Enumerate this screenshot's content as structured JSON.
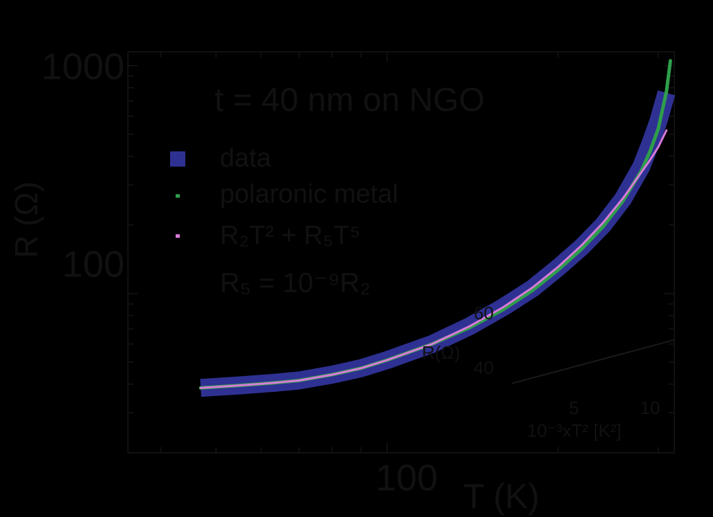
{
  "chart_data": {
    "type": "line",
    "xlabel": "T (K)",
    "ylabel": "R (Ω)",
    "xscale": "log",
    "yscale": "log",
    "xlim": [
      35,
      320
    ],
    "ylim": [
      20,
      1150
    ],
    "x_tick_labels": [
      {
        "value": 100,
        "label": "100"
      }
    ],
    "y_tick_labels": [
      {
        "value": 100,
        "label": "100"
      },
      {
        "value": 1000,
        "label": "1000"
      }
    ],
    "annotations": {
      "thickness": "t = 40 nm on NGO",
      "relation": "R₅ = 10⁻⁹R₂"
    },
    "legend": {
      "placement": "upper-left",
      "entries": [
        {
          "label": "data",
          "color": "#2e3192",
          "marker": "square"
        },
        {
          "label": "polaronic metal",
          "color": "#2e9e4b",
          "marker": "line"
        },
        {
          "label": "R₂T² + R₅T⁵",
          "color": "#d97ad9",
          "marker": "line"
        }
      ]
    },
    "series": [
      {
        "name": "data",
        "color": "#2e3192",
        "x": [
          47,
          55,
          63,
          70,
          80,
          90,
          100,
          120,
          140,
          160,
          180,
          200,
          220,
          240,
          260,
          280,
          290,
          300,
          310
        ],
        "y": [
          38.5,
          39.5,
          40.5,
          41.5,
          44,
          47,
          51,
          60,
          72,
          87,
          105,
          130,
          160,
          200,
          260,
          360,
          450,
          570,
          760
        ]
      },
      {
        "name": "polaronic metal",
        "color": "#2e9e4b",
        "x": [
          47,
          55,
          63,
          70,
          80,
          90,
          100,
          120,
          140,
          160,
          180,
          200,
          220,
          240,
          260,
          280,
          290,
          300,
          310,
          315
        ],
        "y": [
          38.5,
          39.5,
          40.5,
          41.5,
          44,
          47,
          51,
          60,
          71,
          85,
          103,
          127,
          157,
          197,
          255,
          345,
          420,
          530,
          770,
          1050
        ]
      },
      {
        "name": "R₂T² + R₅T⁵",
        "color": "#d97ad9",
        "x": [
          47,
          55,
          63,
          70,
          80,
          90,
          100,
          120,
          140,
          160,
          180,
          200,
          220,
          240,
          260,
          280,
          290,
          300,
          310
        ],
        "y": [
          38.5,
          39.5,
          40.5,
          41.5,
          44,
          47,
          51,
          60,
          72,
          87,
          106,
          131,
          163,
          205,
          262,
          340,
          385,
          440,
          520
        ]
      }
    ],
    "inset": {
      "type": "line",
      "xlabel": "10⁻³xT² [K²]",
      "ylabel": "R(Ω)",
      "x_tick_labels": [
        {
          "value": 5,
          "label": "5"
        },
        {
          "value": 10,
          "label": "10"
        }
      ],
      "y_tick_labels": [
        {
          "value": 40,
          "label": "40"
        },
        {
          "value": 60,
          "label": "60"
        }
      ],
      "xlim": [
        2.3,
        11
      ],
      "ylim": [
        32,
        72
      ],
      "series": [
        {
          "name": "",
          "color": "#1a1a1a",
          "x": [
            2.3,
            11
          ],
          "y": [
            34,
            58
          ]
        }
      ]
    }
  }
}
